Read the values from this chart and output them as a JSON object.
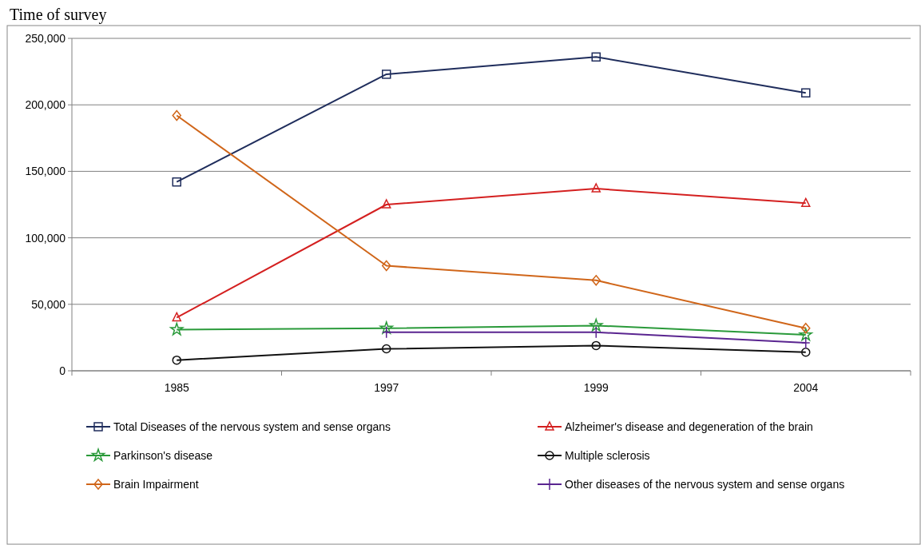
{
  "chart_data": {
    "type": "line",
    "title": "Time of survey",
    "categories": [
      "1985",
      "1997",
      "1999",
      "2004"
    ],
    "ylim": [
      0,
      250000
    ],
    "yticks": [
      {
        "value": 0,
        "label": "0"
      },
      {
        "value": 50000,
        "label": "50,000"
      },
      {
        "value": 100000,
        "label": "100,000"
      },
      {
        "value": 150000,
        "label": "150,000"
      },
      {
        "value": 200000,
        "label": "200,000"
      },
      {
        "value": 250000,
        "label": "250,000"
      }
    ],
    "grid": "y",
    "legend": "bottom",
    "series": [
      {
        "name": "Total Diseases of the nervous system and sense organs",
        "color": "#1f2d5c",
        "marker": "square",
        "values": [
          142000,
          223000,
          236000,
          209000
        ]
      },
      {
        "name": "Alzheimer's disease and degeneration of the brain",
        "color": "#d42020",
        "marker": "triangle",
        "values": [
          40000,
          125000,
          137000,
          126000
        ]
      },
      {
        "name": "Parkinson's disease",
        "color": "#2a9a3a",
        "marker": "star",
        "values": [
          31000,
          32000,
          34000,
          27000
        ]
      },
      {
        "name": "Multiple sclerosis",
        "color": "#111111",
        "marker": "circle",
        "values": [
          8000,
          16500,
          19000,
          14000
        ]
      },
      {
        "name": "Brain Impairment",
        "color": "#d0661a",
        "marker": "diamond",
        "values": [
          192000,
          79000,
          68000,
          32000
        ]
      },
      {
        "name": "Other diseases of the nervous system and sense organs",
        "color": "#5a2590",
        "marker": "cross",
        "values": [
          null,
          29000,
          29000,
          21000
        ]
      }
    ]
  }
}
